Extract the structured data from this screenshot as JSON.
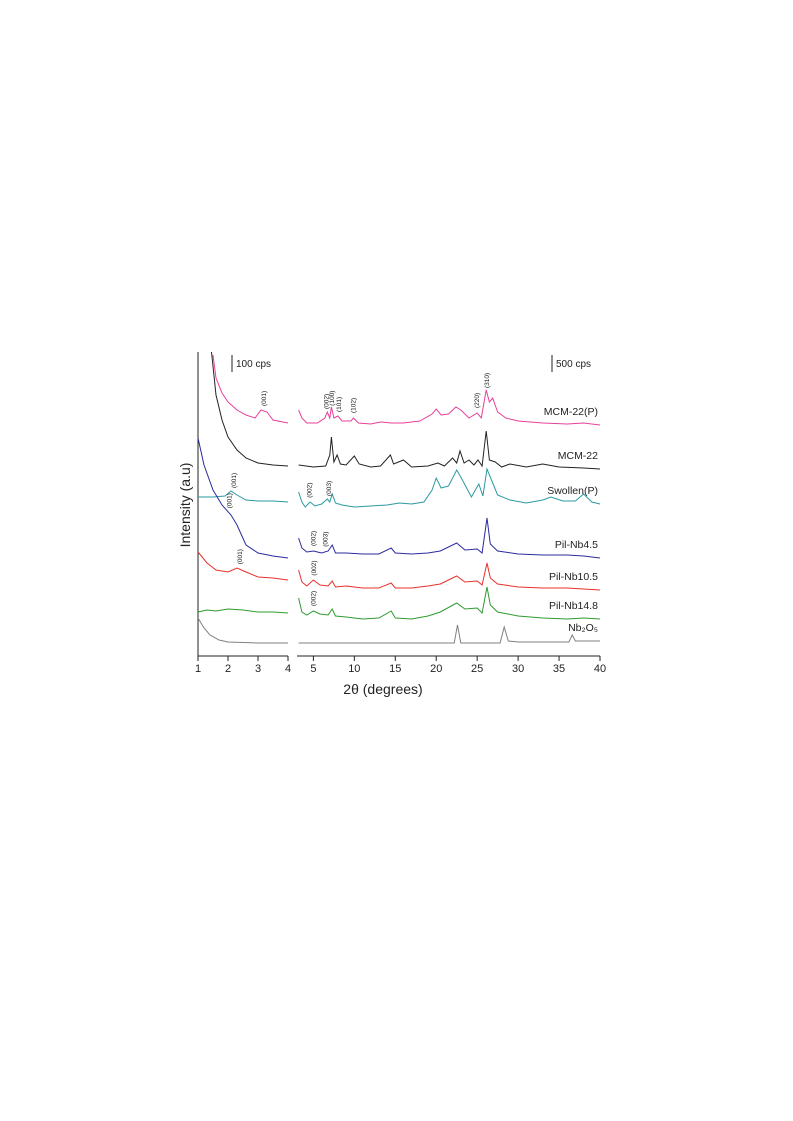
{
  "chart_data": [
    {
      "type": "line",
      "y_label": "Intensity (a.u)",
      "scale_label": "100 cps",
      "xlim": [
        1,
        4
      ],
      "xticks": [
        1,
        2,
        3,
        4
      ],
      "ylim": [
        0,
        304
      ],
      "series": [
        {
          "color": "#e8409a",
          "x": [
            1.5,
            1.6,
            1.8,
            2.0,
            2.3,
            2.6,
            2.9,
            3.1,
            3.3,
            3.5,
            4.0
          ],
          "values": [
            301,
            278,
            263,
            254,
            246,
            241,
            238,
            246,
            244,
            236,
            233
          ],
          "annotations": [
            {
              "label": "(001)",
              "x": 3.2
            }
          ]
        },
        {
          "color": "#222222",
          "x": [
            1.45,
            1.6,
            1.8,
            2.0,
            2.3,
            2.6,
            3.0,
            3.5,
            4.0
          ],
          "values": [
            304,
            261,
            236,
            219,
            206,
            198,
            193,
            191,
            190
          ]
        },
        {
          "color": "#2a9aa0",
          "x": [
            1.0,
            1.5,
            1.9,
            2.1,
            2.3,
            2.6,
            3.0,
            3.5,
            4.0
          ],
          "values": [
            159,
            159,
            160,
            165,
            161,
            156,
            155,
            155,
            154
          ],
          "annotations": [
            {
              "label": "(001)",
              "x": 2.2
            }
          ]
        },
        {
          "color": "#2b2b9e",
          "x": [
            1.0,
            1.2,
            1.5,
            1.8,
            2.1,
            2.3,
            2.6,
            3.0,
            3.5,
            4.0
          ],
          "values": [
            218,
            191,
            166,
            151,
            141,
            131,
            111,
            103,
            100,
            98
          ],
          "annotations": [
            {
              "label": "(001)",
              "x": 2.05
            }
          ]
        },
        {
          "color": "#e8302a",
          "x": [
            1.0,
            1.3,
            1.6,
            2.0,
            2.3,
            2.6,
            3.0,
            3.5,
            4.0
          ],
          "values": [
            104,
            93,
            86,
            84,
            88,
            84,
            79,
            78,
            76
          ],
          "annotations": [
            {
              "label": "(001)",
              "x": 2.4
            }
          ]
        },
        {
          "color": "#2f9a2f",
          "x": [
            1.0,
            1.3,
            1.6,
            2.0,
            2.5,
            3.0,
            3.5,
            4.0
          ],
          "values": [
            44,
            46,
            45,
            47,
            46,
            44,
            44,
            43
          ]
        },
        {
          "color": "#808080",
          "x": [
            1.0,
            1.2,
            1.4,
            1.7,
            2.0,
            3.0,
            4.0
          ],
          "values": [
            38,
            28,
            21,
            16,
            14,
            13,
            13
          ]
        }
      ]
    },
    {
      "type": "line",
      "x_label": "2θ (degrees)",
      "scale_label": "500 cps",
      "xlim": [
        3,
        40
      ],
      "xticks": [
        5,
        10,
        15,
        20,
        25,
        30,
        35,
        40
      ],
      "ylim": [
        0,
        304
      ],
      "series": [
        {
          "name": "MCM-22(P)",
          "color": "#e8409a",
          "x": [
            3.2,
            3.6,
            4.2,
            5.5,
            6.4,
            6.7,
            7.0,
            7.2,
            7.5,
            8.0,
            8.5,
            9.6,
            9.9,
            10.5,
            12,
            13.2,
            14.5,
            16,
            18,
            19.5,
            20,
            20.6,
            21.5,
            22.4,
            23,
            24,
            25,
            25.5,
            26.1,
            26.5,
            26.9,
            27.5,
            28.5,
            30,
            33,
            36,
            38,
            40
          ],
          "values": [
            246,
            238,
            233,
            233,
            238,
            244,
            238,
            249,
            238,
            240,
            235,
            235,
            238,
            233,
            232,
            234,
            233,
            233,
            235,
            242,
            247,
            241,
            242,
            249,
            246,
            238,
            243,
            238,
            266,
            254,
            258,
            244,
            238,
            235,
            233,
            232,
            233,
            231
          ],
          "annotations": [
            {
              "label": "(002)",
              "x": 6.6
            },
            {
              "label": "(100)",
              "x": 7.3
            },
            {
              "label": "(101)",
              "x": 8.1
            },
            {
              "label": "(102)",
              "x": 9.9
            },
            {
              "label": "(220)",
              "x": 25.0
            },
            {
              "label": "(310)",
              "x": 26.2
            }
          ]
        },
        {
          "name": "MCM-22",
          "color": "#222222",
          "x": [
            3.2,
            5,
            6.5,
            7.0,
            7.2,
            7.5,
            7.9,
            8.3,
            9,
            10,
            10.6,
            12,
            13.2,
            14.4,
            14.8,
            16,
            17,
            19,
            20.2,
            21,
            22,
            22.5,
            22.9,
            23.4,
            24,
            24.6,
            25.1,
            25.6,
            26.1,
            26.5,
            27.2,
            28,
            29,
            31,
            33,
            35,
            38,
            40
          ],
          "values": [
            191,
            189,
            190,
            201,
            219,
            194,
            201,
            192,
            191,
            200,
            192,
            189,
            190,
            201,
            192,
            196,
            189,
            190,
            193,
            190,
            198,
            193,
            205,
            193,
            196,
            191,
            196,
            190,
            225,
            196,
            194,
            189,
            192,
            189,
            192,
            189,
            188,
            187
          ]
        },
        {
          "name": "Swollen(P)",
          "color": "#2a9aa0",
          "x": [
            3.2,
            3.6,
            4.0,
            4.6,
            5.2,
            6.0,
            6.7,
            7.0,
            7.3,
            7.7,
            8.5,
            10,
            12,
            14,
            15.5,
            17,
            18.5,
            19.5,
            20,
            20.6,
            21.5,
            22.5,
            23.2,
            24.3,
            25.2,
            25.7,
            26.2,
            26.8,
            27.5,
            29,
            31,
            33,
            34,
            35.5,
            37,
            38,
            39,
            40
          ],
          "values": [
            164,
            154,
            149,
            154,
            150,
            152,
            157,
            154,
            162,
            153,
            151,
            149,
            150,
            151,
            153,
            152,
            154,
            166,
            178,
            168,
            170,
            186,
            176,
            159,
            172,
            160,
            187,
            175,
            161,
            156,
            153,
            156,
            159,
            155,
            155,
            162,
            154,
            152
          ],
          "annotations": [
            {
              "label": "(002)",
              "x": 4.5
            },
            {
              "label": "(003)",
              "x": 6.9
            }
          ]
        },
        {
          "name": "Pil-Nb4.5",
          "color": "#2b2b9e",
          "x": [
            3.2,
            3.6,
            4.2,
            5,
            6,
            6.8,
            7.3,
            7.7,
            9,
            11,
            13,
            14.5,
            15,
            17,
            19,
            20.5,
            22.5,
            23.5,
            25,
            25.6,
            26.2,
            26.6,
            27.5,
            30,
            33,
            36,
            38,
            40
          ],
          "values": [
            118,
            108,
            104,
            105,
            103,
            105,
            111,
            103,
            103,
            102,
            102,
            108,
            103,
            102,
            103,
            105,
            113,
            106,
            107,
            103,
            138,
            112,
            105,
            102,
            101,
            101,
            100,
            98
          ],
          "annotations": [
            {
              "label": "(002)",
              "x": 5.0
            },
            {
              "label": "(003)",
              "x": 6.5
            }
          ]
        },
        {
          "name": "Pil-Nb10.5",
          "color": "#e8302a",
          "x": [
            3.2,
            3.6,
            4.2,
            5,
            5.8,
            6.8,
            7.3,
            7.7,
            9,
            11,
            13,
            14.5,
            15,
            17,
            19,
            20.5,
            22.5,
            23.5,
            25,
            25.6,
            26.2,
            26.6,
            27.5,
            30,
            33,
            36,
            38,
            40
          ],
          "values": [
            86,
            74,
            70,
            76,
            71,
            70,
            75,
            69,
            70,
            68,
            68,
            73,
            68,
            68,
            70,
            72,
            80,
            74,
            75,
            71,
            93,
            78,
            72,
            69,
            68,
            68,
            67,
            66
          ],
          "annotations": [
            {
              "label": "(002)",
              "x": 5.1
            }
          ]
        },
        {
          "name": "Pil-Nb14.8",
          "color": "#2f9a2f",
          "x": [
            3.2,
            3.6,
            4.2,
            5,
            5.8,
            6.8,
            7.3,
            7.7,
            9,
            11,
            13,
            14.5,
            15,
            17,
            19,
            20.5,
            22.5,
            23.5,
            25,
            25.6,
            26.2,
            26.6,
            27.5,
            30,
            33,
            36,
            38,
            40
          ],
          "values": [
            58,
            44,
            41,
            45,
            42,
            41,
            47,
            40,
            39,
            37,
            38,
            45,
            38,
            37,
            40,
            44,
            53,
            47,
            48,
            43,
            69,
            51,
            44,
            40,
            38,
            37,
            38,
            37
          ],
          "annotations": [
            {
              "label": "(002)",
              "x": 5.0
            }
          ]
        },
        {
          "name": "Nb₂O₅",
          "color": "#808080",
          "x": [
            3.2,
            10,
            20,
            22.2,
            22.6,
            23.0,
            25,
            27.8,
            28.3,
            28.8,
            30,
            34,
            36.2,
            36.6,
            37,
            40
          ],
          "values": [
            13,
            13,
            13,
            13,
            31,
            13,
            13,
            13,
            29,
            15,
            14,
            14,
            14,
            21,
            15,
            15
          ]
        }
      ]
    }
  ]
}
